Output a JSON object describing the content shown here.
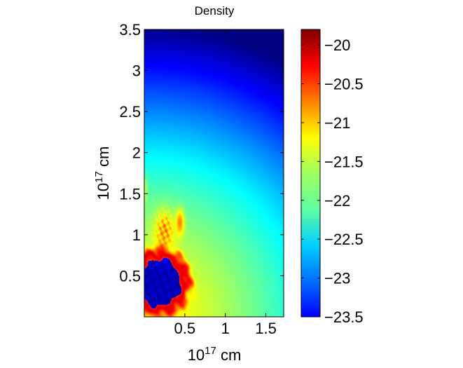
{
  "chart_data": {
    "type": "heatmap",
    "title": "Density",
    "xlabel_base": "10",
    "xlabel_exp": "17",
    "xlabel_unit": " cm",
    "ylabel_base": "10",
    "ylabel_exp": "17",
    "ylabel_unit": " cm",
    "xlim": [
      0,
      1.72
    ],
    "ylim": [
      0,
      3.5
    ],
    "x_ticks": [
      {
        "value": 0.5,
        "label": "0.5"
      },
      {
        "value": 1,
        "label": "1"
      },
      {
        "value": 1.5,
        "label": "1.5"
      }
    ],
    "y_ticks": [
      {
        "value": 0.5,
        "label": "0.5"
      },
      {
        "value": 1,
        "label": "1"
      },
      {
        "value": 1.5,
        "label": "1.5"
      },
      {
        "value": 2,
        "label": "2"
      },
      {
        "value": 2.5,
        "label": "2.5"
      },
      {
        "value": 3,
        "label": "3"
      },
      {
        "value": 3.5,
        "label": "3.5"
      }
    ],
    "colorbar": {
      "colormap": "jet",
      "range": [
        -23.5,
        -19.8
      ],
      "ticks": [
        {
          "value": -20,
          "label": "−20"
        },
        {
          "value": -20.5,
          "label": "−20.5"
        },
        {
          "value": -21,
          "label": "−21"
        },
        {
          "value": -21.5,
          "label": "−21.5"
        },
        {
          "value": -22,
          "label": "−22"
        },
        {
          "value": -22.5,
          "label": "−22.5"
        },
        {
          "value": -23,
          "label": "−23"
        },
        {
          "value": -23.5,
          "label": "−23.5"
        }
      ]
    },
    "field": {
      "background_value_at_origin": -21.0,
      "background_gradient_per_unit_radius": -0.42,
      "bubble_center": [
        0.18,
        0.42
      ],
      "bubble_core_value": -23.3,
      "shell_value": -20.1
    }
  }
}
